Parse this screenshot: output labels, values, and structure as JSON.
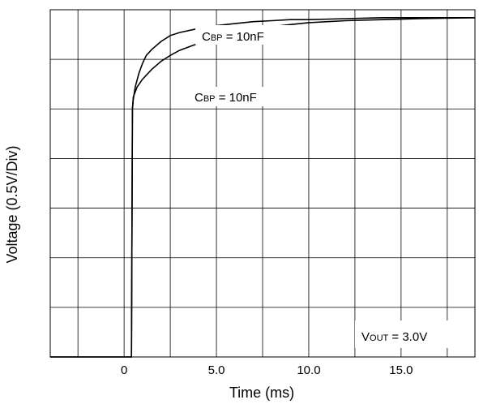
{
  "chart_data": {
    "type": "line",
    "xlabel": "Time (ms)",
    "ylabel": "Voltage (0.5V/Div)",
    "xlim": [
      -4.0,
      19.0
    ],
    "ylim": [
      0,
      3.5
    ],
    "y_div": 0.5,
    "x_gridlines": [
      -2.5,
      0,
      2.5,
      5.0,
      7.5,
      10.0,
      12.5,
      15.0,
      17.5
    ],
    "x_ticks": [
      {
        "value": 0,
        "label": "0"
      },
      {
        "value": 5.0,
        "label": "5.0"
      },
      {
        "value": 10.0,
        "label": "10.0"
      },
      {
        "value": 15.0,
        "label": "15.0"
      }
    ],
    "grid": true,
    "series": [
      {
        "label_main": "C",
        "label_sub": "BP",
        "label_rest": " = 10nF",
        "x": [
          -4,
          0.4,
          0.45,
          0.5,
          0.6,
          0.8,
          1.0,
          1.2,
          1.5,
          2.0,
          2.5,
          3.0,
          4.0,
          5.0,
          6.0,
          7.0,
          8.0,
          9.0,
          10.0,
          12.0,
          14.0,
          16.0,
          19.0
        ],
        "y": [
          0,
          0,
          2.5,
          2.6,
          2.72,
          2.86,
          2.96,
          3.04,
          3.1,
          3.18,
          3.24,
          3.27,
          3.31,
          3.34,
          3.36,
          3.38,
          3.39,
          3.4,
          3.4,
          3.41,
          3.42,
          3.42,
          3.42
        ]
      },
      {
        "label_main": "C",
        "label_sub": "BP",
        "label_rest": " = 10nF",
        "x": [
          -4,
          0.4,
          0.45,
          0.5,
          0.7,
          1.0,
          1.5,
          2.0,
          2.5,
          3.0,
          4.0,
          5.0,
          6.0,
          7.0,
          8.0,
          9.0,
          10.0,
          12.0,
          14.0,
          16.0,
          19.0
        ],
        "y": [
          0,
          0,
          2.5,
          2.62,
          2.72,
          2.8,
          2.9,
          2.98,
          3.04,
          3.09,
          3.16,
          3.22,
          3.27,
          3.3,
          3.33,
          3.35,
          3.37,
          3.39,
          3.4,
          3.41,
          3.42
        ]
      }
    ],
    "annotation": {
      "main": "V",
      "sub": "OUT",
      "rest": " = 3.0V"
    }
  }
}
